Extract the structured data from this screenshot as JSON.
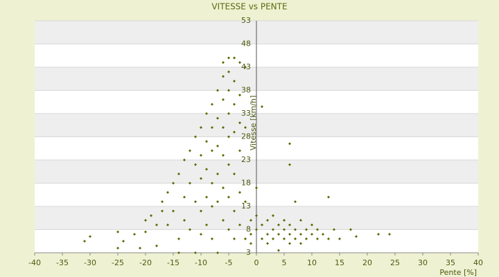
{
  "chart_data": {
    "type": "scatter",
    "title": "VITESSE vs PENTE",
    "x_label": "Pente [%]",
    "y_label": "Vitesse [km/h]",
    "color": "#5a6a00",
    "grid": true,
    "xlim": [
      -40,
      40
    ],
    "xticks": [
      -40,
      -35,
      -30,
      -25,
      -20,
      -15,
      -10,
      -5,
      0,
      5,
      10,
      15,
      20,
      25,
      30,
      35,
      40
    ],
    "ylim": [
      3,
      53
    ],
    "yticks": [
      3,
      8,
      13,
      18,
      23,
      28,
      33,
      38,
      43,
      48,
      53
    ],
    "x": [
      -31,
      -30,
      -25,
      -25,
      -24,
      -22,
      -21,
      -20,
      -20,
      -19,
      -18,
      -18,
      -17,
      -17,
      -16,
      -16,
      -15,
      -15,
      -14,
      -14,
      -14,
      -13,
      -13,
      -13,
      -12,
      -12,
      -12,
      -11,
      -11,
      -11,
      -11,
      -10,
      -10,
      -10,
      -10,
      -10,
      -9,
      -9,
      -9,
      -9,
      -9,
      -8,
      -8,
      -8,
      -8,
      -8,
      -8,
      -7,
      -7,
      -7,
      -7,
      -7,
      -7,
      -6,
      -6,
      -6,
      -6,
      -6,
      -6,
      -6,
      -5,
      -5,
      -5,
      -5,
      -5,
      -5,
      -5,
      -5,
      -4,
      -4,
      -4,
      -4,
      -4,
      -4,
      -4,
      -3,
      -3,
      -3,
      -3,
      -3,
      -3,
      -2,
      -2,
      -2,
      -2,
      -1,
      -1,
      -1,
      0,
      0,
      0,
      1,
      1,
      1,
      2,
      2,
      2,
      3,
      3,
      3,
      4,
      4,
      4,
      5,
      5,
      5,
      6,
      6,
      6,
      6,
      6,
      7,
      7,
      7,
      8,
      8,
      8,
      9,
      9,
      10,
      10,
      11,
      11,
      12,
      13,
      13,
      14,
      15,
      17,
      18,
      22,
      24
    ],
    "values": [
      5.5,
      6.5,
      4,
      7.5,
      5.5,
      7,
      4,
      10,
      7.5,
      11,
      9,
      4.5,
      12,
      14,
      16,
      9,
      18,
      12,
      20,
      6,
      3,
      23,
      15,
      10,
      25,
      18,
      8,
      28,
      22,
      14,
      3,
      30,
      24,
      19,
      12,
      7,
      33,
      27,
      21,
      15,
      9,
      35,
      30,
      25,
      18,
      13,
      6,
      38,
      32,
      26,
      20,
      14,
      3,
      44,
      41,
      36,
      30,
      24,
      17,
      10,
      45,
      42,
      38,
      33,
      28,
      22,
      15,
      8,
      45,
      40,
      35,
      29,
      20,
      12,
      6,
      44,
      37,
      31,
      25,
      16,
      9,
      43,
      30,
      14,
      6,
      10,
      7,
      5,
      8,
      11,
      17,
      34.5,
      6,
      9,
      7,
      10,
      5,
      8,
      11,
      6,
      7,
      9,
      3.5,
      8,
      6,
      10,
      26.5,
      22,
      7,
      9,
      5,
      8,
      6,
      14,
      7,
      10,
      5,
      8,
      6,
      7,
      9,
      6,
      8,
      7,
      15,
      6,
      8,
      6,
      8,
      6.5,
      7,
      7
    ]
  }
}
